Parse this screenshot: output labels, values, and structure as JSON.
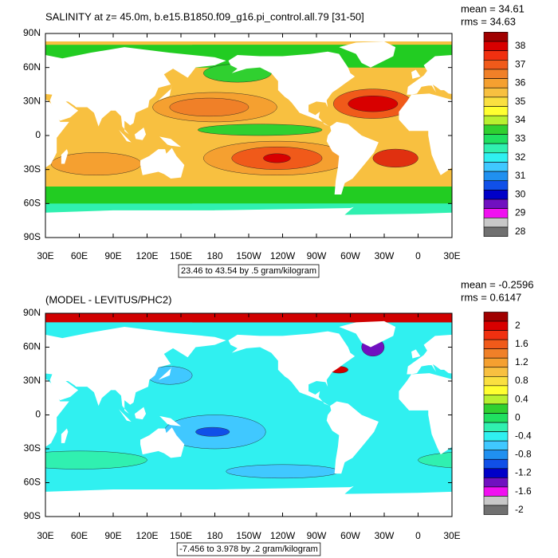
{
  "panels": [
    {
      "title": "SALINITY at z=  45.0m, b.e15.B1850.f09_g16.pi_control.all.79 [31-50]",
      "mean_label": "mean = 34.61",
      "rms_label": "rms = 34.63",
      "lat_labels": [
        "90N",
        "60N",
        "30N",
        "0",
        "30S",
        "60S",
        "90S"
      ],
      "lon_labels": [
        "30E",
        "60E",
        "90E",
        "120E",
        "150E",
        "180",
        "150W",
        "120W",
        "90W",
        "60W",
        "30W",
        "0",
        "30E"
      ],
      "contour_info": "23.46 to 43.54 by .5 gram/kilogram",
      "colorbar_labels": [
        "38",
        "37",
        "36",
        "35",
        "34",
        "33",
        "32",
        "31",
        "30",
        "29",
        "28"
      ]
    },
    {
      "title": "(MODEL - LEVITUS/PHC2)",
      "mean_label": "mean = -0.2596",
      "rms_label": "rms = 0.6147",
      "lat_labels": [
        "90N",
        "60N",
        "30N",
        "0",
        "30S",
        "60S",
        "90S"
      ],
      "lon_labels": [
        "30E",
        "60E",
        "90E",
        "120E",
        "150E",
        "180",
        "150W",
        "120W",
        "90W",
        "60W",
        "30W",
        "0",
        "30E"
      ],
      "contour_info": "-7.456 to 3.978 by .2 gram/kilogram",
      "colorbar_labels": [
        "2",
        "1.6",
        "1.2",
        "0.8",
        "0.4",
        "0",
        "-0.4",
        "-0.8",
        "-1.2",
        "-1.6",
        "-2"
      ]
    }
  ]
}
